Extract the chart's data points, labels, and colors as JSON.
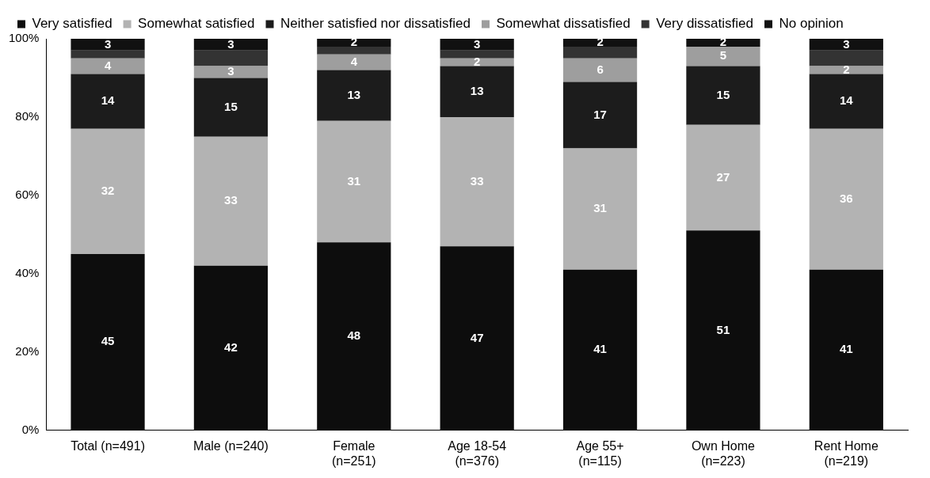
{
  "chart_data": {
    "type": "bar",
    "stacked": true,
    "categories": [
      "Total (n=491)",
      "Male (n=240)",
      "Female (n=251)",
      "Age 18-54 (n=376)",
      "Age 55+ (n=115)",
      "Own Home (n=223)",
      "Rent Home (n=219)"
    ],
    "series": [
      {
        "name": "Very satisfied",
        "color": "#0d0d0d",
        "values": [
          45,
          42,
          48,
          47,
          41,
          51,
          41
        ],
        "value_labels": [
          "45",
          "42",
          "48",
          "47",
          "41",
          "51",
          "41"
        ]
      },
      {
        "name": "Somewhat satisfied",
        "color": "#b3b3b3",
        "values": [
          32,
          33,
          31,
          33,
          31,
          27,
          36
        ],
        "value_labels": [
          "32",
          "33",
          "31",
          "33",
          "31",
          "27",
          "36"
        ]
      },
      {
        "name": "Neither satisfied nor dissatisfied",
        "color": "#1c1c1c",
        "values": [
          14,
          15,
          13,
          13,
          17,
          15,
          14
        ],
        "value_labels": [
          "14",
          "15",
          "13",
          "13",
          "17",
          "15",
          "14"
        ]
      },
      {
        "name": "Somewhat dissatisfied",
        "color": "#9e9e9e",
        "values": [
          4,
          3,
          4,
          2,
          6,
          5,
          2
        ],
        "value_labels": [
          "4",
          "3",
          "4",
          "2",
          "6",
          "5",
          "2"
        ]
      },
      {
        "name": "Very dissatisfied",
        "color": "#333333",
        "values": [
          2,
          4,
          2,
          2,
          3,
          0,
          4
        ],
        "value_labels": [
          null,
          null,
          null,
          null,
          null,
          null,
          null
        ]
      },
      {
        "name": "No opinion",
        "color": "#111111",
        "values": [
          3,
          3,
          2,
          3,
          2,
          2,
          3
        ],
        "value_labels": [
          "3",
          "3",
          "2",
          "3",
          "2",
          "2",
          "3"
        ]
      }
    ],
    "ylim": [
      0,
      100
    ],
    "yticks": [
      {
        "value": 0,
        "label": "0%"
      },
      {
        "value": 20,
        "label": "20%"
      },
      {
        "value": 40,
        "label": "40%"
      },
      {
        "value": 60,
        "label": "60%"
      },
      {
        "value": 80,
        "label": "80%"
      },
      {
        "value": 100,
        "label": "100%"
      }
    ],
    "grid": false,
    "legend": "top"
  }
}
